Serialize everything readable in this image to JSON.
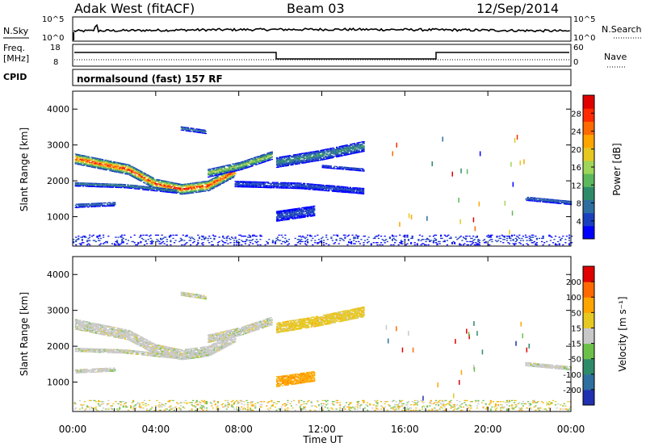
{
  "header": {
    "station": "Adak West (fitACF)",
    "beam": "Beam 03",
    "date": "12/Sep/2014"
  },
  "time_axis": {
    "label": "Time UT",
    "ticks": [
      "00:00",
      "04:00",
      "08:00",
      "12:00",
      "16:00",
      "20:00",
      "00:00"
    ],
    "range_hours": [
      0,
      24
    ]
  },
  "status_panels": {
    "nsky": {
      "left_label": "N.Sky",
      "right_label": "N.Search",
      "left_ticks": [
        "10^5",
        "10^0"
      ],
      "right_ticks": [
        "10^5",
        "10^0"
      ]
    },
    "freq": {
      "left_label_line1": "Freq.",
      "left_label_line2": "[MHz]",
      "right_label": "Nave",
      "left_ticks": [
        "18",
        "8"
      ],
      "right_ticks": [
        "60",
        "0"
      ]
    },
    "cpid": {
      "label": "CPID",
      "text": "normalsound (fast) 157 RF"
    }
  },
  "chart_data": [
    {
      "type": "heatmap",
      "name": "power",
      "ylabel": "Slant Range [km]",
      "ylim": [
        180,
        4500
      ],
      "yticks": [
        "1000",
        "2000",
        "3000",
        "4000"
      ],
      "colorbar_label": "Power [dB]",
      "colorbar_ticks": [
        "4",
        "8",
        "12",
        "16",
        "20",
        "24",
        "28"
      ],
      "colorbar_range": [
        0,
        32
      ],
      "colors": [
        "#0000ff",
        "#1a3fbf",
        "#2e6fa0",
        "#2e8b6a",
        "#5cb85c",
        "#9fd65a",
        "#e6c820",
        "#ffa500",
        "#ff6a00",
        "#ff2a00",
        "#e00000"
      ],
      "bands": [
        {
          "t": [
            0.1,
            7.8
          ],
          "r_center": [
            2600,
            2450,
            2300,
            1900,
            1750,
            1850,
            2250
          ],
          "width": 280,
          "peak": 30
        },
        {
          "t": [
            6.5,
            9.6
          ],
          "r_center": [
            2200,
            2400,
            2700
          ],
          "width": 220,
          "peak": 18
        },
        {
          "t": [
            0.1,
            5.0
          ],
          "r_center": [
            1900,
            1850,
            1700
          ],
          "width": 120,
          "peak": 10
        },
        {
          "t": [
            0.1,
            2.0
          ],
          "r_center": [
            1300,
            1350
          ],
          "width": 120,
          "peak": 8
        },
        {
          "t": [
            7.8,
            14.0
          ],
          "r_center": [
            1900,
            1850,
            1700
          ],
          "width": 160,
          "peak": 6
        },
        {
          "t": [
            9.8,
            14.0
          ],
          "r_center": [
            2500,
            2700,
            2950
          ],
          "width": 280,
          "peak": 11
        },
        {
          "t": [
            9.8,
            11.6
          ],
          "r_center": [
            1000,
            1150
          ],
          "width": 280,
          "peak": 6
        },
        {
          "t": [
            12.0,
            14.0
          ],
          "r_center": [
            2400,
            2300
          ],
          "width": 90,
          "peak": 5
        },
        {
          "t": [
            21.8,
            24.0
          ],
          "r_center": [
            1500,
            1380
          ],
          "width": 120,
          "peak": 7
        },
        {
          "t": [
            5.2,
            6.4
          ],
          "r_center": [
            3450,
            3350
          ],
          "width": 100,
          "peak": 10
        },
        {
          "t": [
            0.0,
            24.0
          ],
          "r_center": [
            350,
            350
          ],
          "width": 300,
          "peak": 5
        }
      ]
    },
    {
      "type": "heatmap",
      "name": "velocity",
      "ylabel": "Slant Range [km]",
      "ylim": [
        180,
        4500
      ],
      "yticks": [
        "1000",
        "2000",
        "3000",
        "4000"
      ],
      "colorbar_label": "Velocity [m s⁻¹]",
      "colorbar_ticks": [
        "200",
        "100",
        "50",
        "15",
        "-15",
        "-50",
        "-100",
        "-200"
      ],
      "colors": [
        "#2030b0",
        "#2e6fa0",
        "#2e8b6a",
        "#6cc04a",
        "#c8c8c8",
        "#e6c820",
        "#ffa500",
        "#ff6a00",
        "#e00000"
      ],
      "bands": [
        {
          "t": [
            0.1,
            7.8
          ],
          "r_center": [
            2600,
            2450,
            2300,
            1900,
            1750,
            1850,
            2250
          ],
          "width": 280,
          "level": 4
        },
        {
          "t": [
            6.5,
            9.6
          ],
          "r_center": [
            2200,
            2400,
            2700
          ],
          "width": 220,
          "level": 4
        },
        {
          "t": [
            0.1,
            5.0
          ],
          "r_center": [
            1900,
            1850,
            1700
          ],
          "width": 120,
          "level": 4
        },
        {
          "t": [
            0.1,
            2.0
          ],
          "r_center": [
            1300,
            1350
          ],
          "width": 120,
          "level": 4
        },
        {
          "t": [
            9.8,
            11.6
          ],
          "r_center": [
            1000,
            1150
          ],
          "width": 280,
          "level": 6
        },
        {
          "t": [
            9.8,
            14.0
          ],
          "r_center": [
            2500,
            2700,
            2950
          ],
          "width": 280,
          "level": 5
        },
        {
          "t": [
            21.8,
            24.0
          ],
          "r_center": [
            1500,
            1380
          ],
          "width": 120,
          "level": 4
        },
        {
          "t": [
            5.2,
            6.4
          ],
          "r_center": [
            3450,
            3350
          ],
          "width": 100,
          "level": 4
        },
        {
          "t": [
            0.0,
            24.0
          ],
          "r_center": [
            350,
            350
          ],
          "width": 300,
          "level": 5
        }
      ]
    }
  ]
}
